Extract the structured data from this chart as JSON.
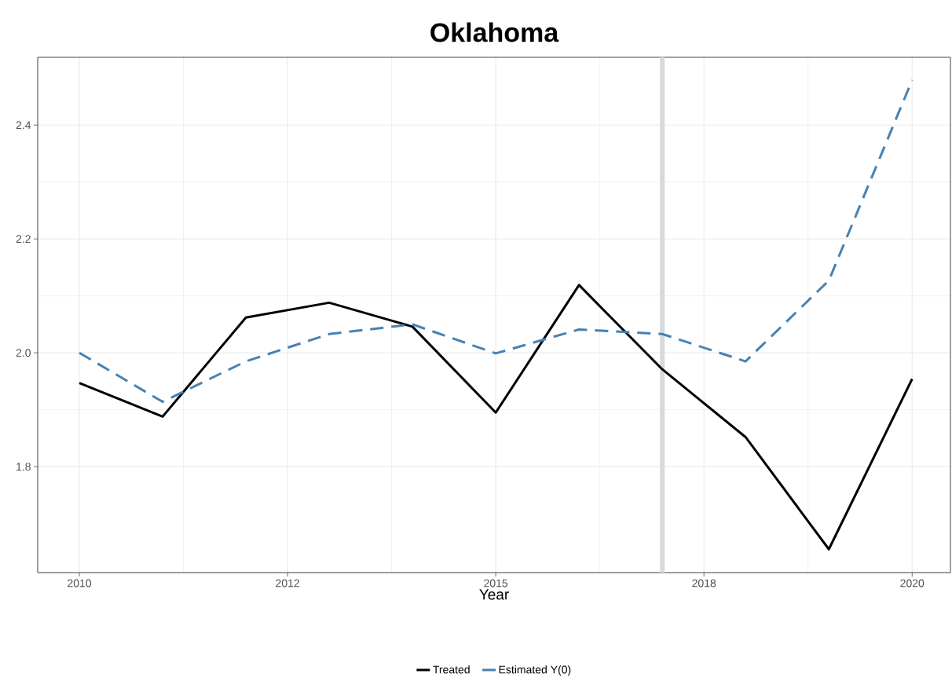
{
  "chart_data": {
    "type": "line",
    "title": "Oklahoma",
    "xlabel": "Year",
    "x": [
      2010,
      2011,
      2012,
      2013,
      2014,
      2015,
      2016,
      2017,
      2018,
      2019,
      2020
    ],
    "series": [
      {
        "name": "Treated",
        "color": "#000000",
        "line_style": "solid",
        "values": [
          1.947,
          1.888,
          2.062,
          2.088,
          2.046,
          1.895,
          2.119,
          1.971,
          1.852,
          1.655,
          1.954
        ]
      },
      {
        "name": "Estimated Y(0)",
        "color": "#4682b4",
        "line_style": "dashed",
        "values": [
          2.0,
          1.914,
          1.985,
          2.033,
          2.05,
          1.999,
          2.041,
          2.033,
          1.985,
          2.127,
          2.479
        ]
      }
    ],
    "xlim": [
      2009.5,
      2020.46
    ],
    "ylim": [
      1.614,
      2.519
    ],
    "xticks": [
      2010,
      {
        "value": 2012.5,
        "label": "2012"
      },
      2015,
      {
        "value": 2017.5,
        "label": "2018"
      },
      2020
    ],
    "yticks": [
      {
        "value": 1.8,
        "label": "1.8"
      },
      {
        "value": 2.0,
        "label": "2.0"
      },
      {
        "value": 2.2,
        "label": "2.2"
      },
      {
        "value": 2.4,
        "label": "2.4"
      }
    ],
    "ref_lines": [
      {
        "axis": "x",
        "value": 2017,
        "color": "#d9d9d9"
      }
    ],
    "grid": true,
    "legend": "bottom",
    "marker": "none"
  }
}
